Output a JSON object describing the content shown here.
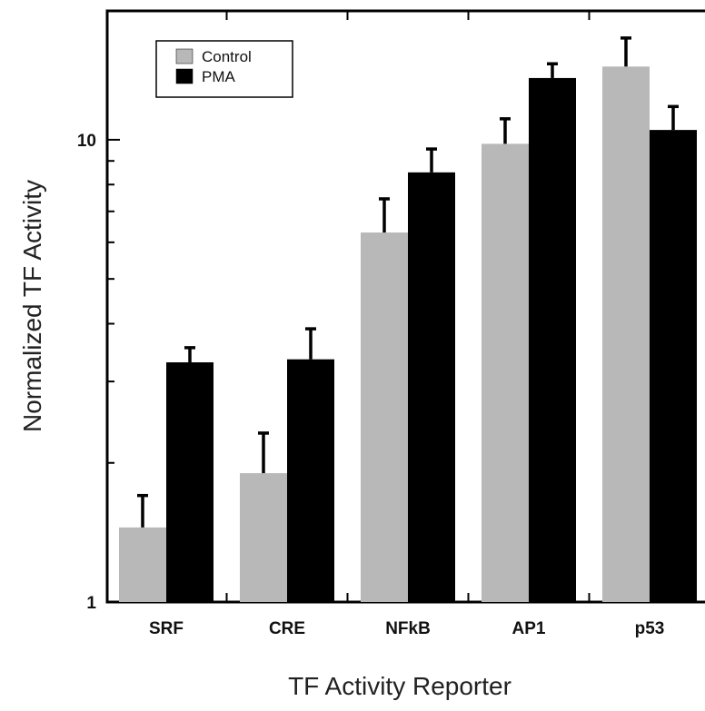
{
  "chart_data": {
    "type": "bar",
    "xlabel": "TF Activity Reporter",
    "ylabel": "Normalized TF Activity",
    "yscale": "log",
    "ylim": [
      1,
      19
    ],
    "yticks": [
      1,
      10
    ],
    "ytick_labels": [
      "1",
      "10"
    ],
    "categories": [
      "SRF",
      "CRE",
      "NFkB",
      "AP1",
      "p53"
    ],
    "series": [
      {
        "name": "Control",
        "color": "#b8b8b8",
        "values": [
          1.45,
          1.9,
          6.3,
          9.8,
          14.4
        ],
        "errors": [
          0.25,
          0.42,
          1.15,
          1.3,
          2.2
        ]
      },
      {
        "name": "PMA",
        "color": "#000000",
        "values": [
          3.3,
          3.35,
          8.5,
          13.6,
          10.5
        ],
        "errors": [
          0.25,
          0.55,
          1.05,
          1.0,
          1.3
        ]
      }
    ],
    "legend": {
      "position": "top-left",
      "entries": [
        "Control",
        "PMA"
      ]
    },
    "grid": false
  }
}
